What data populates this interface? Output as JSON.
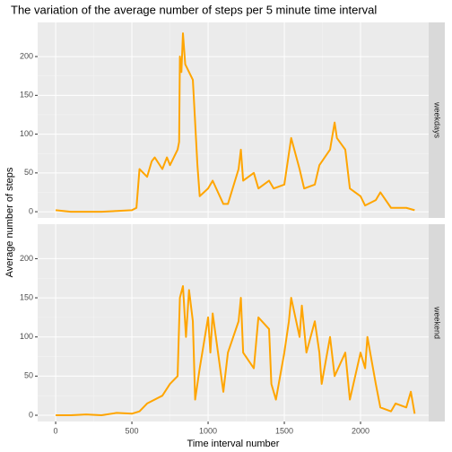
{
  "chart_data": {
    "type": "line",
    "title": "The variation of the average number of steps per 5 minute time interval",
    "xlabel": "Time interval number",
    "ylabel": "Average number of steps",
    "color": "#ffa500",
    "xlim": [
      -118,
      2447
    ],
    "xticks": [
      0,
      500,
      1000,
      1500,
      2000
    ],
    "ylim": [
      -8,
      244
    ],
    "yticks": [
      0,
      50,
      100,
      150,
      200
    ],
    "grid": true,
    "series": [
      {
        "name": "weekdays",
        "x": [
          0,
          50,
          100,
          200,
          300,
          400,
          500,
          530,
          550,
          600,
          630,
          650,
          700,
          730,
          750,
          800,
          810,
          815,
          825,
          835,
          850,
          900,
          930,
          945,
          1000,
          1030,
          1100,
          1130,
          1200,
          1215,
          1230,
          1300,
          1330,
          1400,
          1430,
          1500,
          1545,
          1600,
          1630,
          1700,
          1730,
          1800,
          1830,
          1845,
          1900,
          1930,
          2000,
          2030,
          2100,
          2130,
          2200,
          2300,
          2355
        ],
        "values": [
          2,
          1,
          0,
          0,
          0,
          1,
          2,
          5,
          55,
          45,
          65,
          70,
          55,
          70,
          60,
          80,
          90,
          200,
          180,
          230,
          190,
          170,
          60,
          20,
          30,
          40,
          10,
          10,
          55,
          80,
          40,
          50,
          30,
          40,
          30,
          35,
          95,
          55,
          30,
          35,
          60,
          80,
          115,
          95,
          80,
          30,
          20,
          8,
          15,
          25,
          5,
          5,
          2
        ]
      },
      {
        "name": "weekend",
        "x": [
          0,
          100,
          200,
          300,
          400,
          500,
          550,
          600,
          700,
          750,
          800,
          815,
          835,
          855,
          875,
          900,
          915,
          945,
          1000,
          1015,
          1030,
          1100,
          1130,
          1200,
          1215,
          1230,
          1300,
          1330,
          1400,
          1415,
          1445,
          1500,
          1530,
          1545,
          1600,
          1615,
          1645,
          1700,
          1730,
          1745,
          1800,
          1830,
          1900,
          1930,
          2000,
          2030,
          2045,
          2100,
          2130,
          2200,
          2230,
          2300,
          2330,
          2355
        ],
        "values": [
          0,
          0,
          1,
          0,
          3,
          2,
          5,
          15,
          25,
          40,
          50,
          150,
          165,
          100,
          160,
          120,
          20,
          60,
          125,
          80,
          130,
          30,
          80,
          120,
          150,
          80,
          60,
          125,
          110,
          40,
          20,
          80,
          120,
          150,
          100,
          140,
          80,
          120,
          80,
          40,
          100,
          50,
          80,
          20,
          80,
          60,
          100,
          40,
          10,
          5,
          15,
          10,
          30,
          2
        ]
      }
    ]
  }
}
